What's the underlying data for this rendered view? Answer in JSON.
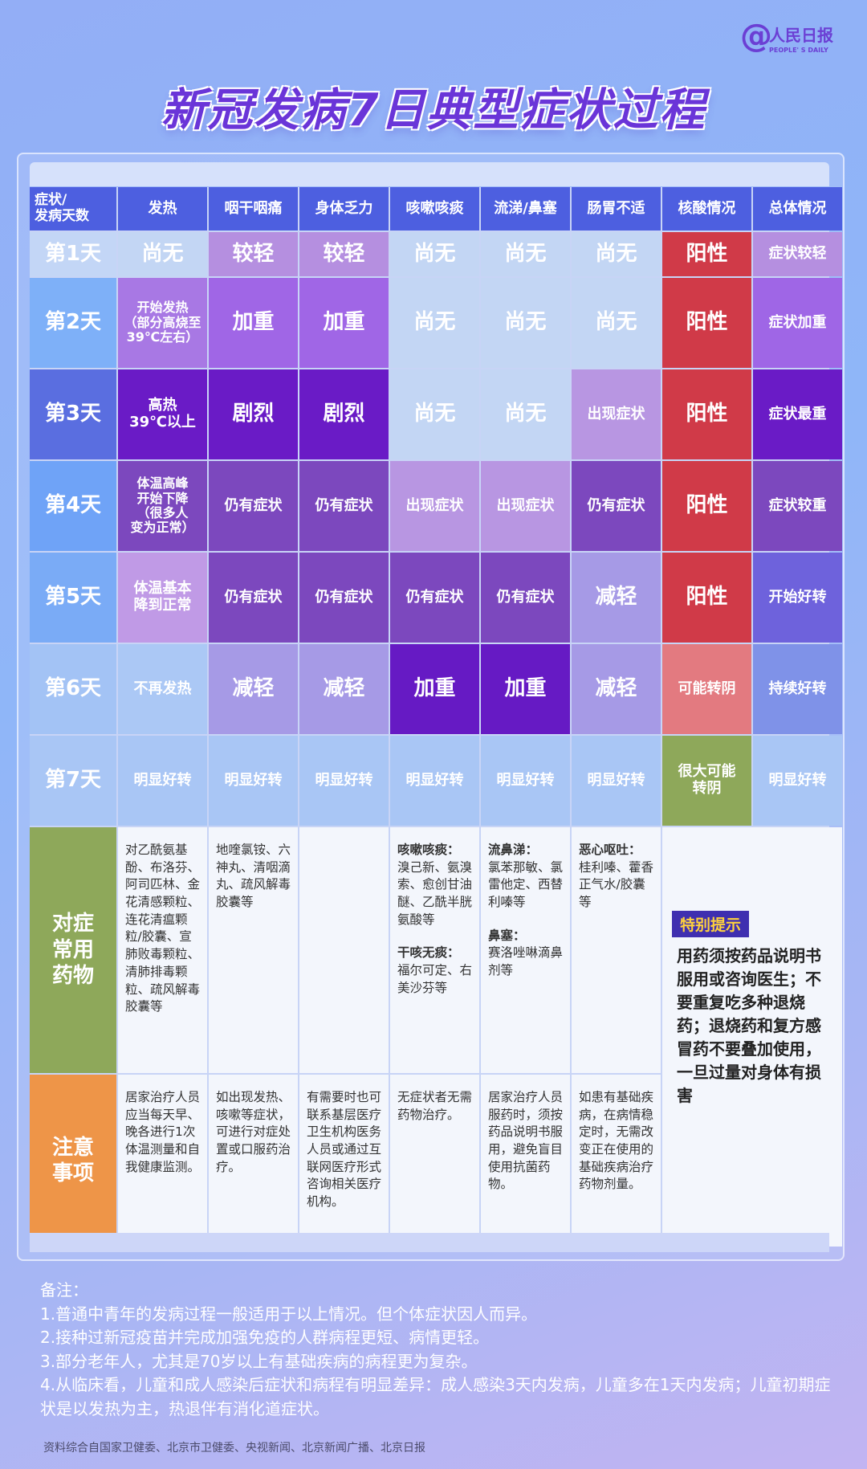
{
  "logo": {
    "symbol": "@",
    "cn": "人民日报",
    "en": "PEOPLE' S DAILY"
  },
  "title": "新冠发病7日典型症状过程",
  "headers": [
    "症状/\n发病天数",
    "发热",
    "咽干咽痛",
    "身体乏力",
    "咳嗽咳痰",
    "流涕/鼻塞",
    "肠胃不适",
    "核酸情况",
    "总体情况"
  ],
  "rows": [
    {
      "day": "第1天",
      "day_bg": "#c3d6f6",
      "cells": [
        {
          "t": "尚无",
          "bg": "#c3d6f4",
          "s": "big"
        },
        {
          "t": "较轻",
          "bg": "#b58fe0",
          "s": "big"
        },
        {
          "t": "较轻",
          "bg": "#b58fe0",
          "s": "big"
        },
        {
          "t": "尚无",
          "bg": "#c3d6f4",
          "s": "big"
        },
        {
          "t": "尚无",
          "bg": "#c3d6f4",
          "s": "big"
        },
        {
          "t": "尚无",
          "bg": "#c3d6f4",
          "s": "big"
        },
        {
          "t": "阳性",
          "bg": "#d03a48",
          "s": "big"
        },
        {
          "t": "症状较轻",
          "bg": "#b58fe0",
          "s": "mid"
        }
      ]
    },
    {
      "day": "第2天",
      "day_bg": "#7eb0f8",
      "cells": [
        {
          "t": "开始发热\n（部分高烧至\n39℃左右）",
          "bg": "#a878e4",
          "s": "small"
        },
        {
          "t": "加重",
          "bg": "#a066e6",
          "s": "big"
        },
        {
          "t": "加重",
          "bg": "#a066e6",
          "s": "big"
        },
        {
          "t": "尚无",
          "bg": "#c3d6f4",
          "s": "big"
        },
        {
          "t": "尚无",
          "bg": "#c3d6f4",
          "s": "big"
        },
        {
          "t": "尚无",
          "bg": "#c3d6f4",
          "s": "big"
        },
        {
          "t": "阳性",
          "bg": "#d03a48",
          "s": "big"
        },
        {
          "t": "症状加重",
          "bg": "#9f66e6",
          "s": "mid"
        }
      ]
    },
    {
      "day": "第3天",
      "day_bg": "#5a6ee0",
      "cells": [
        {
          "t": "高热\n39℃以上",
          "bg": "#6a1bc6",
          "s": "mid"
        },
        {
          "t": "剧烈",
          "bg": "#6a1bc6",
          "s": "big"
        },
        {
          "t": "剧烈",
          "bg": "#6a1bc6",
          "s": "big"
        },
        {
          "t": "尚无",
          "bg": "#c3d6f4",
          "s": "big"
        },
        {
          "t": "尚无",
          "bg": "#c3d6f4",
          "s": "big"
        },
        {
          "t": "出现症状",
          "bg": "#b896e2",
          "s": "mid"
        },
        {
          "t": "阳性",
          "bg": "#d03a48",
          "s": "big"
        },
        {
          "t": "症状最重",
          "bg": "#6a1bc6",
          "s": "mid"
        }
      ]
    },
    {
      "day": "第4天",
      "day_bg": "#6fa3f7",
      "cells": [
        {
          "t": "体温高峰\n开始下降\n（很多人\n变为正常）",
          "bg": "#7c48be",
          "s": "small"
        },
        {
          "t": "仍有症状",
          "bg": "#7c48be",
          "s": "mid"
        },
        {
          "t": "仍有症状",
          "bg": "#7c48be",
          "s": "mid"
        },
        {
          "t": "出现症状",
          "bg": "#b896e2",
          "s": "mid"
        },
        {
          "t": "出现症状",
          "bg": "#b896e2",
          "s": "mid"
        },
        {
          "t": "仍有症状",
          "bg": "#7c48be",
          "s": "mid"
        },
        {
          "t": "阳性",
          "bg": "#d03a48",
          "s": "big"
        },
        {
          "t": "症状较重",
          "bg": "#7c48be",
          "s": "mid"
        }
      ]
    },
    {
      "day": "第5天",
      "day_bg": "#7aabf6",
      "cells": [
        {
          "t": "体温基本\n降到正常",
          "bg": "#c09ae6",
          "s": "mid"
        },
        {
          "t": "仍有症状",
          "bg": "#7c48be",
          "s": "mid"
        },
        {
          "t": "仍有症状",
          "bg": "#7c48be",
          "s": "mid"
        },
        {
          "t": "仍有症状",
          "bg": "#7c48be",
          "s": "mid"
        },
        {
          "t": "仍有症状",
          "bg": "#7c48be",
          "s": "mid"
        },
        {
          "t": "减轻",
          "bg": "#a69ae6",
          "s": "big"
        },
        {
          "t": "阳性",
          "bg": "#d03a48",
          "s": "big"
        },
        {
          "t": "开始好转",
          "bg": "#6e62dc",
          "s": "mid"
        }
      ]
    },
    {
      "day": "第6天",
      "day_bg": "#a3c3f5",
      "cells": [
        {
          "t": "不再发热",
          "bg": "#abc8f5",
          "s": "mid"
        },
        {
          "t": "减轻",
          "bg": "#a69ae6",
          "s": "big"
        },
        {
          "t": "减轻",
          "bg": "#a69ae6",
          "s": "big"
        },
        {
          "t": "加重",
          "bg": "#661ac4",
          "s": "big"
        },
        {
          "t": "加重",
          "bg": "#661ac4",
          "s": "big"
        },
        {
          "t": "减轻",
          "bg": "#a69ae6",
          "s": "big"
        },
        {
          "t": "可能转阴",
          "bg": "#e37a80",
          "s": "mid"
        },
        {
          "t": "持续好转",
          "bg": "#7f92e8",
          "s": "mid"
        }
      ]
    },
    {
      "day": "第7天",
      "day_bg": "#a9c6f5",
      "cells": [
        {
          "t": "明显好转",
          "bg": "#a9c6f5",
          "s": "mid"
        },
        {
          "t": "明显好转",
          "bg": "#a9c6f5",
          "s": "mid"
        },
        {
          "t": "明显好转",
          "bg": "#a9c6f5",
          "s": "mid"
        },
        {
          "t": "明显好转",
          "bg": "#a9c6f5",
          "s": "mid"
        },
        {
          "t": "明显好转",
          "bg": "#a9c6f5",
          "s": "mid"
        },
        {
          "t": "明显好转",
          "bg": "#a9c6f5",
          "s": "mid"
        },
        {
          "t": "很大可能\n转阴",
          "bg": "#8ea85a",
          "s": "mid"
        },
        {
          "t": "明显好转",
          "bg": "#a9c6f5",
          "s": "mid"
        }
      ]
    }
  ],
  "drugs": {
    "label": "对症\n常用\n药物",
    "label_bg": "#8ea85a",
    "cells": [
      "对乙酰氨基酚、布洛芬、阿司匹林、金花清感颗粒、连花清瘟颗粒/胶囊、宣肺败毒颗粒、清肺排毒颗粒、疏风解毒胶囊等",
      "地喹氯铵、六神丸、清咽滴丸、疏风解毒胶囊等",
      "",
      {
        "h1": "咳嗽咳痰：",
        "t1": "溴己新、氨溴索、愈创甘油醚、乙酰半胱氨酸等",
        "h2": "干咳无痰：",
        "t2": "福尔可定、右美沙芬等"
      },
      {
        "h1": "流鼻涕：",
        "t1": "氯苯那敏、氯雷他定、西替利嗪等",
        "h2": "鼻塞：",
        "t2": "赛洛唑啉滴鼻剂等"
      },
      {
        "h1": "恶心呕吐：",
        "t1": "桂利嗪、藿香正气水/胶囊等",
        "h2": "",
        "t2": ""
      }
    ]
  },
  "cautions": {
    "label": "注意\n事项",
    "label_bg": "#ee9548",
    "cells": [
      "居家治疗人员应当每天早、晚各进行1次体温测量和自我健康监测。",
      "如出现发热、咳嗽等症状，可进行对症处置或口服药治疗。",
      "有需要时也可联系基层医疗卫生机构医务人员或通过互联网医疗形式咨询相关医疗机构。",
      "无症状者无需药物治疗。",
      "居家治疗人员服药时，须按药品说明书服用，避免盲目使用抗菌药物。",
      "如患有基础疾病，在病情稳定时，无需改变正在使用的基础疾病治疗药物剂量。"
    ]
  },
  "tip": {
    "label": "特别提示",
    "text": "用药须按药品说明书服用或咨询医生；不要重复吃多种退烧药；退烧药和复方感冒药不要叠加使用，一旦过量对身体有损害"
  },
  "notes": [
    "备注：",
    "1.普通中青年的发病过程一般适用于以上情况。但个体症状因人而异。",
    "2.接种过新冠疫苗并完成加强免疫的人群病程更短、病情更轻。",
    "3.部分老年人，尤其是70岁以上有基础疾病的病程更为复杂。",
    "4.从临床看，儿童和成人感染后症状和病程有明显差异：成人感染3天内发病，儿童多在1天内发病；儿童初期症状是以发热为主，热退伴有消化道症状。"
  ],
  "source": "资料综合自国家卫健委、北京市卫健委、央视新闻、北京新闻广播、北京日报"
}
